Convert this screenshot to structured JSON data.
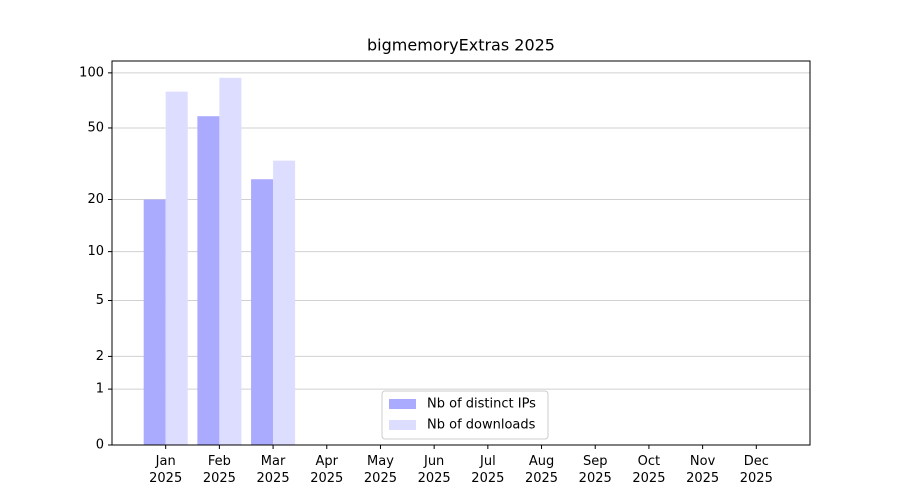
{
  "chart_data": {
    "type": "bar",
    "title": "bigmemoryExtras 2025",
    "categories": [
      "Jan\n2025",
      "Feb\n2025",
      "Mar\n2025",
      "Apr\n2025",
      "May\n2025",
      "Jun\n2025",
      "Jul\n2025",
      "Aug\n2025",
      "Sep\n2025",
      "Oct\n2025",
      "Nov\n2025",
      "Dec\n2025"
    ],
    "series": [
      {
        "name": "Nb of distinct IPs",
        "color": "#aaaaff",
        "values": [
          20,
          58,
          26,
          null,
          null,
          null,
          null,
          null,
          null,
          null,
          null,
          null
        ]
      },
      {
        "name": "Nb of downloads",
        "color": "#ddddff",
        "values": [
          79,
          94,
          33,
          null,
          null,
          null,
          null,
          null,
          null,
          null,
          null,
          null
        ]
      }
    ],
    "y_scale": "log1p",
    "ylim": [
      0,
      116
    ],
    "yticks": [
      0,
      1,
      2,
      5,
      10,
      20,
      50,
      100
    ],
    "grid": true,
    "legend": "lower center"
  }
}
